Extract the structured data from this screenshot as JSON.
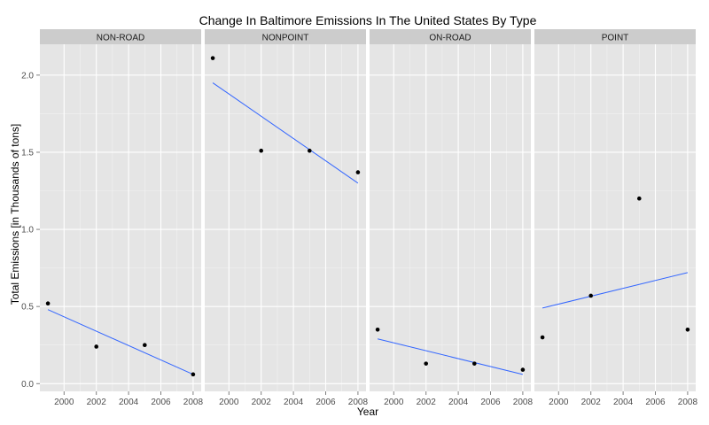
{
  "chart_data": {
    "type": "scatter",
    "title": "Change In Baltimore Emissions In The United States By Type",
    "xlabel": "Year",
    "ylabel": "Total Emissions [in Thousands of tons]",
    "xlim": [
      1998.5,
      2008.5
    ],
    "ylim": [
      -0.05,
      2.2
    ],
    "x_ticks": [
      2000,
      2002,
      2004,
      2006,
      2008
    ],
    "y_ticks": [
      0.0,
      0.5,
      1.0,
      1.5,
      2.0
    ],
    "y_tick_labels": [
      "0.0",
      "0.5",
      "1.0",
      "1.5",
      "2.0"
    ],
    "grid": true,
    "facets": [
      {
        "name": "NON-ROAD",
        "points": [
          {
            "x": 1999,
            "y": 0.52
          },
          {
            "x": 2002,
            "y": 0.24
          },
          {
            "x": 2005,
            "y": 0.25
          },
          {
            "x": 2008,
            "y": 0.06
          }
        ],
        "trend": [
          {
            "x": 1999,
            "y": 0.48
          },
          {
            "x": 2008,
            "y": 0.06
          }
        ]
      },
      {
        "name": "NONPOINT",
        "points": [
          {
            "x": 1999,
            "y": 2.11
          },
          {
            "x": 2002,
            "y": 1.51
          },
          {
            "x": 2005,
            "y": 1.51
          },
          {
            "x": 2008,
            "y": 1.37
          }
        ],
        "trend": [
          {
            "x": 1999,
            "y": 1.95
          },
          {
            "x": 2008,
            "y": 1.3
          }
        ]
      },
      {
        "name": "ON-ROAD",
        "points": [
          {
            "x": 1999,
            "y": 0.35
          },
          {
            "x": 2002,
            "y": 0.13
          },
          {
            "x": 2005,
            "y": 0.13
          },
          {
            "x": 2008,
            "y": 0.09
          }
        ],
        "trend": [
          {
            "x": 1999,
            "y": 0.29
          },
          {
            "x": 2008,
            "y": 0.06
          }
        ]
      },
      {
        "name": "POINT",
        "points": [
          {
            "x": 1999,
            "y": 0.3
          },
          {
            "x": 2002,
            "y": 0.57
          },
          {
            "x": 2005,
            "y": 1.2
          },
          {
            "x": 2008,
            "y": 0.35
          }
        ],
        "trend": [
          {
            "x": 1999,
            "y": 0.49
          },
          {
            "x": 2008,
            "y": 0.72
          }
        ]
      }
    ],
    "colors": {
      "panel_background": "#e5e5e5",
      "strip_background": "#cccccc",
      "grid_major": "#ffffff",
      "grid_minor": "#f2f2f2",
      "point": "#000000",
      "trend_line": "#3366ff"
    }
  }
}
